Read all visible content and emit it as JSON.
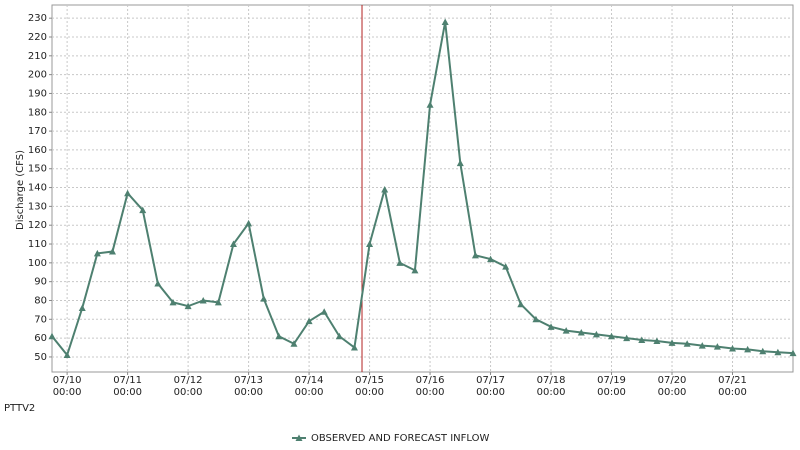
{
  "chart_data": {
    "type": "line",
    "y_label": "Discharge (CFS)",
    "station": "PTTV2",
    "x": [
      "07/09 18:00",
      "07/10 00:00",
      "07/10 06:00",
      "07/10 12:00",
      "07/10 18:00",
      "07/11 00:00",
      "07/11 06:00",
      "07/11 12:00",
      "07/11 18:00",
      "07/12 00:00",
      "07/12 06:00",
      "07/12 12:00",
      "07/12 18:00",
      "07/13 00:00",
      "07/13 06:00",
      "07/13 12:00",
      "07/13 18:00",
      "07/14 00:00",
      "07/14 06:00",
      "07/14 12:00",
      "07/14 18:00",
      "07/15 00:00",
      "07/15 06:00",
      "07/15 12:00",
      "07/15 18:00",
      "07/16 00:00",
      "07/16 06:00",
      "07/16 12:00",
      "07/16 18:00",
      "07/17 00:00",
      "07/17 06:00",
      "07/17 12:00",
      "07/17 18:00",
      "07/18 00:00",
      "07/18 06:00",
      "07/18 12:00",
      "07/18 18:00",
      "07/19 00:00",
      "07/19 06:00",
      "07/19 12:00",
      "07/19 18:00",
      "07/20 00:00",
      "07/20 06:00",
      "07/20 12:00",
      "07/20 18:00",
      "07/21 00:00",
      "07/21 06:00",
      "07/21 12:00",
      "07/21 18:00",
      "07/22 00:00"
    ],
    "series": [
      {
        "name": "OBSERVED AND FORECAST INFLOW",
        "color": "#4e8070",
        "values": [
          61,
          51,
          76,
          105,
          106,
          137,
          128,
          89,
          79,
          77,
          80,
          79,
          110,
          121,
          81,
          61,
          57,
          69,
          74,
          61,
          55,
          110,
          139,
          100,
          96,
          184,
          228,
          153,
          104,
          102,
          98,
          78,
          70,
          66,
          64,
          63,
          62,
          61,
          60,
          59,
          58.5,
          57.5,
          57,
          56,
          55.5,
          54.5,
          54,
          53,
          52.5,
          52
        ]
      }
    ],
    "xlim": [
      "07/09 18:00",
      "07/22 00:00"
    ],
    "xticks": [
      "07/10 00:00",
      "07/11 00:00",
      "07/12 00:00",
      "07/13 00:00",
      "07/14 00:00",
      "07/15 00:00",
      "07/16 00:00",
      "07/17 00:00",
      "07/18 00:00",
      "07/19 00:00",
      "07/20 00:00",
      "07/21 00:00"
    ],
    "ylim": [
      42,
      237
    ],
    "yticks": [
      50,
      60,
      70,
      80,
      90,
      100,
      110,
      120,
      130,
      140,
      150,
      160,
      170,
      180,
      190,
      200,
      210,
      220,
      230
    ],
    "forecast_start": "07/14 21:00",
    "forecast_color": "#b22222",
    "grid": true
  }
}
